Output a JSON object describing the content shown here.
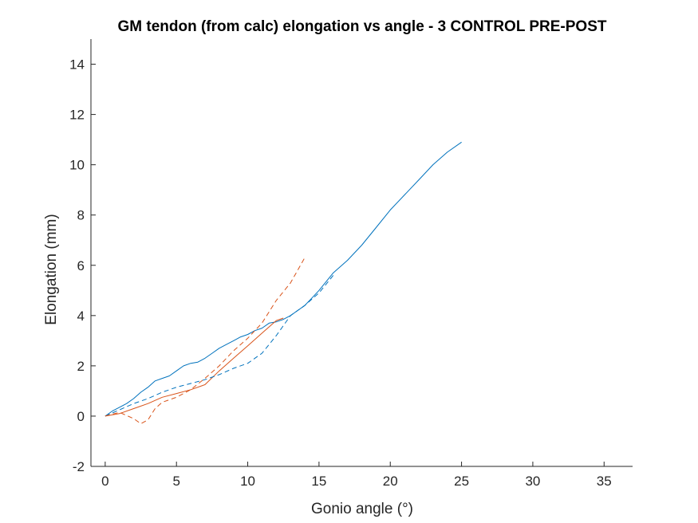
{
  "chart_data": {
    "type": "line",
    "title": "GM tendon (from calc) elongation vs angle - 3 CONTROL PRE-POST",
    "xlabel": "Gonio angle (°)",
    "ylabel": "Elongation (mm)",
    "xlim": [
      -1,
      37
    ],
    "ylim": [
      -2,
      15
    ],
    "xticks": [
      0,
      5,
      10,
      15,
      20,
      25,
      30,
      35
    ],
    "yticks": [
      -2,
      0,
      2,
      4,
      6,
      8,
      10,
      12,
      14
    ],
    "grid": false,
    "legend": "none",
    "series": [
      {
        "color": "#0072BD",
        "dash": "solid",
        "x": [
          0,
          0.5,
          1,
          1.5,
          2,
          2.5,
          3,
          3.5,
          4,
          4.5,
          5,
          5.5,
          6,
          6.5,
          7,
          7.5,
          8,
          8.5,
          9,
          9.5,
          10,
          10.5,
          11,
          11.5,
          12,
          12.5,
          13,
          13.5,
          14,
          14.5,
          15,
          16,
          17,
          18,
          19,
          20,
          21,
          22,
          23,
          24,
          25
        ],
        "y": [
          0,
          0.2,
          0.35,
          0.5,
          0.7,
          0.95,
          1.15,
          1.4,
          1.5,
          1.6,
          1.8,
          2.0,
          2.1,
          2.15,
          2.3,
          2.5,
          2.7,
          2.85,
          3.0,
          3.15,
          3.25,
          3.4,
          3.5,
          3.7,
          3.75,
          3.85,
          4.0,
          4.2,
          4.4,
          4.7,
          5.0,
          5.7,
          6.2,
          6.8,
          7.5,
          8.2,
          8.8,
          9.4,
          10.0,
          10.5,
          10.9
        ]
      },
      {
        "color": "#D95319",
        "dash": "solid",
        "x": [
          0,
          1,
          2,
          3,
          4,
          5,
          6,
          7,
          8,
          9,
          10,
          11,
          12,
          12.5
        ],
        "y": [
          0,
          0.1,
          0.3,
          0.5,
          0.75,
          0.9,
          1.05,
          1.25,
          1.8,
          2.3,
          2.8,
          3.3,
          3.8,
          3.9
        ]
      },
      {
        "color": "#0072BD",
        "dash": "dashed",
        "x": [
          0,
          1,
          2,
          3,
          4,
          5,
          6,
          7,
          8,
          9,
          10,
          11,
          12,
          13,
          14,
          15,
          16
        ],
        "y": [
          0,
          0.25,
          0.5,
          0.7,
          0.95,
          1.15,
          1.3,
          1.45,
          1.65,
          1.9,
          2.1,
          2.5,
          3.2,
          4.0,
          4.4,
          4.9,
          5.6
        ]
      },
      {
        "color": "#D95319",
        "dash": "dashed",
        "x": [
          0,
          1,
          2,
          2.5,
          3,
          3.5,
          4,
          5,
          6,
          7,
          8,
          9,
          10,
          10.5,
          11,
          12,
          13,
          14
        ],
        "y": [
          0,
          0.15,
          -0.1,
          -0.3,
          -0.15,
          0.3,
          0.55,
          0.75,
          1.05,
          1.5,
          2.0,
          2.6,
          3.1,
          3.4,
          3.7,
          4.6,
          5.3,
          6.3
        ]
      }
    ]
  }
}
